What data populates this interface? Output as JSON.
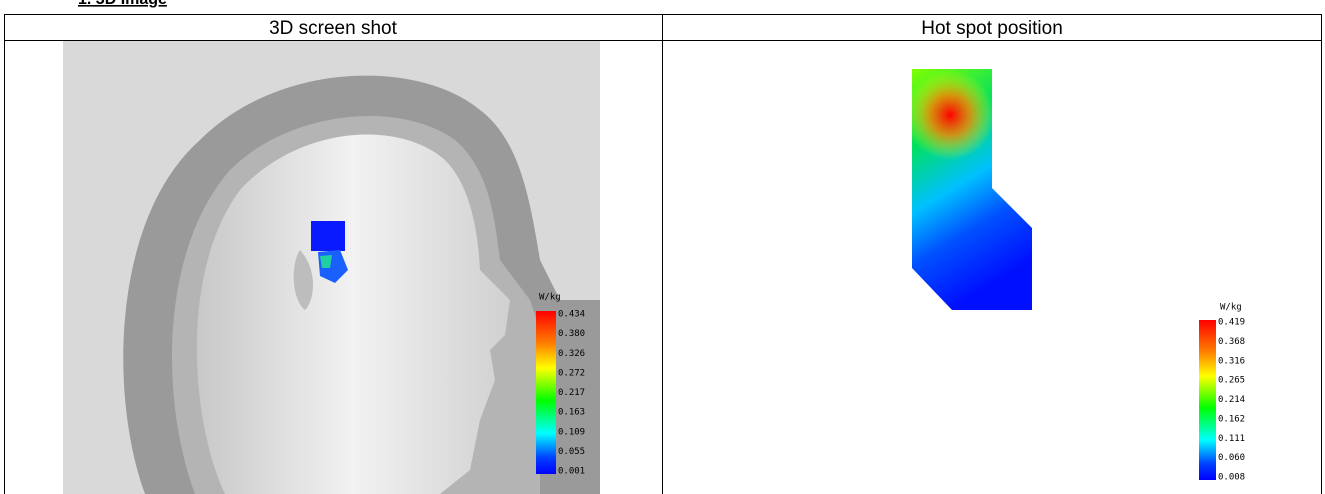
{
  "heading": "1. 3D Image",
  "table": {
    "headers": [
      "3D screen shot",
      "Hot spot position"
    ],
    "left_colorbar": {
      "unit": "W/kg",
      "labels": [
        "0.434",
        "0.380",
        "0.326",
        "0.272",
        "0.217",
        "0.163",
        "0.109",
        "0.055",
        "0.001"
      ]
    },
    "right_colorbar": {
      "unit": "W/kg",
      "labels": [
        "0.419",
        "0.368",
        "0.316",
        "0.265",
        "0.214",
        "0.162",
        "0.111",
        "0.060",
        "0.008"
      ]
    }
  }
}
